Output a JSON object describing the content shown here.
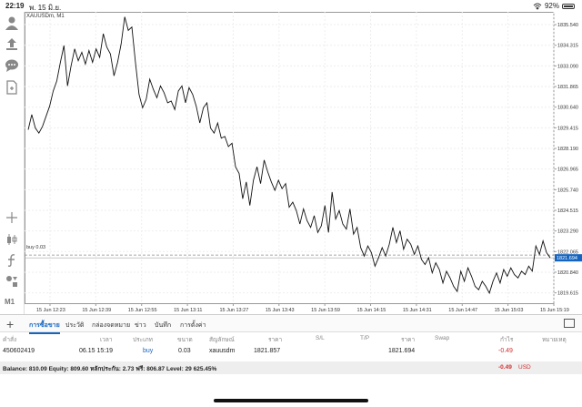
{
  "status": {
    "time": "22:19",
    "date": "พ. 15 มิ.ย.",
    "battery": "92%"
  },
  "sidebar": {
    "icons": [
      "account-icon",
      "trade-icon",
      "chat-icon",
      "document-icon",
      "crosshair-icon",
      "candle-icon",
      "function-icon",
      "objects-icon"
    ],
    "timeframe_label": "M1"
  },
  "chart": {
    "symbol": "XAUUSDm, M1",
    "buy_label": "buy 0.03",
    "current_price": "1821.694",
    "y_ticks": [
      "1835.540",
      "1834.315",
      "1833.090",
      "1831.865",
      "1830.640",
      "1829.415",
      "1828.190",
      "1826.965",
      "1825.740",
      "1824.515",
      "1823.290",
      "1822.065",
      "1820.840",
      "1819.615"
    ],
    "x_ticks": [
      "15 Jun 12:23",
      "15 Jun 12:39",
      "15 Jun 12:55",
      "15 Jun 13:11",
      "15 Jun 13:27",
      "15 Jun 13:43",
      "15 Jun 13:59",
      "15 Jun 14:15",
      "15 Jun 14:31",
      "15 Jun 14:47",
      "15 Jun 15:03",
      "15 Jun 15:19"
    ]
  },
  "chart_data": {
    "type": "line",
    "title": "XAUUSDm, M1",
    "xlabel": "",
    "ylabel": "",
    "ylim": [
      1819.0,
      1836.3
    ],
    "series": [
      {
        "name": "",
        "values": [
          1829.3,
          1830.2,
          1829.4,
          1829.1,
          1829.5,
          1830.1,
          1830.7,
          1831.6,
          1832.2,
          1833.3,
          1834.3,
          1831.9,
          1833.1,
          1834.1,
          1833.4,
          1833.9,
          1833.2,
          1834.0,
          1833.3,
          1834.1,
          1833.6,
          1835.0,
          1834.2,
          1833.8,
          1832.5,
          1833.3,
          1834.4,
          1836.0,
          1835.2,
          1835.4,
          1833.3,
          1831.4,
          1830.6,
          1831.1,
          1832.3,
          1831.7,
          1831.2,
          1831.9,
          1831.5,
          1830.9,
          1831.0,
          1830.5,
          1831.6,
          1831.9,
          1830.9,
          1831.8,
          1831.4,
          1830.7,
          1829.7,
          1830.6,
          1830.9,
          1829.4,
          1829.1,
          1829.7,
          1828.8,
          1828.9,
          1828.3,
          1828.5,
          1827.1,
          1826.7,
          1825.2,
          1826.2,
          1824.8,
          1826.3,
          1827.1,
          1826.1,
          1827.5,
          1826.8,
          1826.2,
          1825.7,
          1826.3,
          1825.8,
          1826.1,
          1824.7,
          1825.0,
          1824.5,
          1823.7,
          1824.6,
          1823.9,
          1823.5,
          1824.2,
          1823.2,
          1823.6,
          1824.8,
          1823.2,
          1825.6,
          1824.0,
          1824.5,
          1823.7,
          1823.4,
          1824.6,
          1823.1,
          1823.5,
          1822.3,
          1821.8,
          1822.4,
          1822.0,
          1821.2,
          1821.7,
          1822.3,
          1821.8,
          1822.5,
          1823.5,
          1822.6,
          1823.3,
          1822.2,
          1822.8,
          1822.5,
          1821.9,
          1822.4,
          1821.6,
          1821.3,
          1821.7,
          1820.8,
          1821.4,
          1821.0,
          1820.2,
          1820.9,
          1820.5,
          1820.0,
          1819.7,
          1820.9,
          1820.3,
          1821.1,
          1820.6,
          1820.0,
          1819.8,
          1820.3,
          1820.0,
          1819.6,
          1820.3,
          1820.8,
          1820.2,
          1821.0,
          1820.6,
          1821.1,
          1820.7,
          1820.5,
          1820.9,
          1820.7,
          1821.2,
          1820.9,
          1822.4,
          1821.9,
          1822.7,
          1822.0,
          1821.7
        ]
      }
    ],
    "reference_line": 1821.857,
    "current_price": 1821.694
  },
  "tabs": {
    "items": [
      "การซื้อขาย",
      "ประวัติ",
      "กล่องจดหมาย",
      "ข่าว",
      "บันทึก",
      "การตั้งค่า"
    ],
    "active": 0
  },
  "table": {
    "headers": [
      "คำสั่ง",
      "เวลา",
      "ประเภท",
      "ขนาด",
      "สัญลักษณ์",
      "ราคา",
      "S/L",
      "T/P",
      "ราคา",
      "Swap",
      "กำไร",
      "หมายเหตุ"
    ],
    "row": {
      "order": "450602419",
      "time": "06.15 15:19",
      "type": "buy",
      "size": "0.03",
      "symbol": "xauusdm",
      "price": "1821.857",
      "sl": "",
      "tp": "",
      "current": "1821.694",
      "swap": "",
      "profit": "-0.49",
      "comment": ""
    }
  },
  "balance": {
    "text": "Balance: 810.09 Equity: 809.60 หลักประกัน: 2.73 ฟรี: 806.87 Level: 29 625.45%",
    "profit": "-0.49",
    "currency": "USD"
  }
}
